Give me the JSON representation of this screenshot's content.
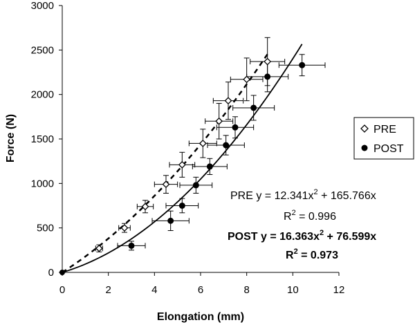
{
  "chart_data": {
    "type": "scatter",
    "xlabel": "Elongation (mm)",
    "ylabel": "Force (N)",
    "xlim": [
      0,
      12
    ],
    "ylim": [
      0,
      3000
    ],
    "x_ticks": [
      0,
      2,
      4,
      6,
      8,
      10,
      12
    ],
    "y_ticks": [
      0,
      500,
      1000,
      1500,
      2000,
      2500,
      3000
    ],
    "legend_position": "right",
    "series": [
      {
        "name": "PRE",
        "marker": "open-diamond",
        "color": "#000000",
        "points": [
          {
            "x": 1.6,
            "y": 270,
            "xerr": 0.15,
            "yerr": 40
          },
          {
            "x": 2.7,
            "y": 500,
            "xerr": 0.25,
            "yerr": 50
          },
          {
            "x": 3.6,
            "y": 740,
            "xerr": 0.35,
            "yerr": 70
          },
          {
            "x": 4.5,
            "y": 990,
            "xerr": 0.5,
            "yerr": 100
          },
          {
            "x": 5.2,
            "y": 1210,
            "xerr": 0.55,
            "yerr": 140
          },
          {
            "x": 6.1,
            "y": 1450,
            "xerr": 0.6,
            "yerr": 160
          },
          {
            "x": 6.8,
            "y": 1700,
            "xerr": 0.6,
            "yerr": 200
          },
          {
            "x": 7.2,
            "y": 1930,
            "xerr": 0.65,
            "yerr": 210
          },
          {
            "x": 8.0,
            "y": 2170,
            "xerr": 0.7,
            "yerr": 240
          },
          {
            "x": 8.9,
            "y": 2370,
            "xerr": 0.75,
            "yerr": 270
          }
        ]
      },
      {
        "name": "POST",
        "marker": "filled-circle",
        "color": "#000000",
        "points": [
          {
            "x": 3.0,
            "y": 300,
            "xerr": 0.6,
            "yerr": 50
          },
          {
            "x": 4.7,
            "y": 580,
            "xerr": 0.8,
            "yerr": 110
          },
          {
            "x": 5.2,
            "y": 750,
            "xerr": 0.7,
            "yerr": 80
          },
          {
            "x": 5.8,
            "y": 980,
            "xerr": 0.7,
            "yerr": 90
          },
          {
            "x": 6.4,
            "y": 1190,
            "xerr": 0.75,
            "yerr": 90
          },
          {
            "x": 7.1,
            "y": 1430,
            "xerr": 0.8,
            "yerr": 110
          },
          {
            "x": 7.5,
            "y": 1630,
            "xerr": 0.8,
            "yerr": 120
          },
          {
            "x": 8.3,
            "y": 1850,
            "xerr": 0.9,
            "yerr": 140
          },
          {
            "x": 8.9,
            "y": 2200,
            "xerr": 0.9,
            "yerr": 170
          },
          {
            "x": 10.4,
            "y": 2330,
            "xerr": 1.0,
            "yerr": 120
          }
        ]
      }
    ],
    "fits": [
      {
        "series": "PRE",
        "a": 12.341,
        "b": 165.766,
        "x_max": 9.0,
        "style": "dashed"
      },
      {
        "series": "POST",
        "a": 16.363,
        "b": 76.599,
        "x_max": 10.4,
        "style": "solid"
      }
    ],
    "legend": {
      "entries": [
        "PRE",
        "POST"
      ]
    },
    "annotations": {
      "pre_equation": "PRE y = 12.341x",
      "pre_equation_tail": " + 165.766x",
      "pre_r2": "R",
      "pre_r2_tail": " = 0.996",
      "post_equation": "POST y = 16.363x",
      "post_equation_tail": " + 76.599x",
      "post_r2": "R",
      "post_r2_tail": " = 0.973",
      "superscript_two": "2"
    }
  }
}
